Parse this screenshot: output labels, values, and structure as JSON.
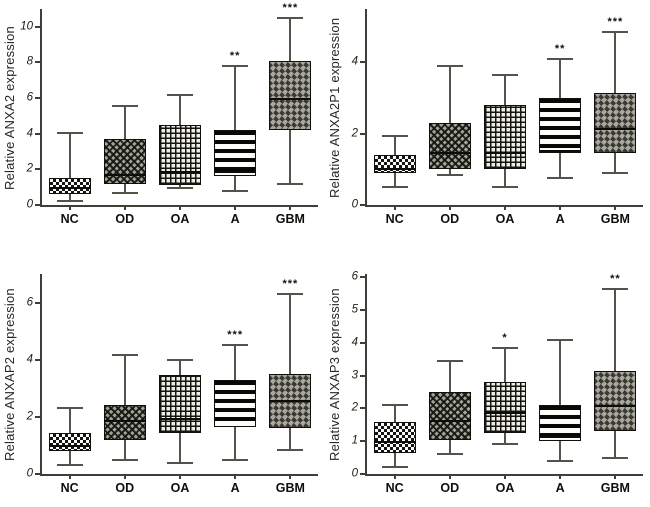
{
  "styles": {
    "background": "#ffffff",
    "axis_color": "#3f3f38",
    "whisker_color": "#53534b",
    "box_border_color": "#12100c",
    "text_color": "#1d1d18"
  },
  "chart_data": [
    {
      "type": "box",
      "title": "",
      "xlabel": "",
      "ylabel": "Relative ANXA2 expression",
      "categories": [
        "NC",
        "OD",
        "OA",
        "A",
        "GBM"
      ],
      "yticks": [
        0,
        2,
        4,
        6,
        8,
        10
      ],
      "ylim": [
        0,
        11
      ],
      "grid": false,
      "boxes": [
        {
          "category": "NC",
          "pattern": "checker",
          "whisker_low": 0.2,
          "q1": 0.6,
          "median": 1.0,
          "q3": 1.5,
          "whisker_high": 4.05,
          "significance": ""
        },
        {
          "category": "OD",
          "pattern": "diagonal",
          "whisker_low": 0.7,
          "q1": 1.2,
          "median": 1.75,
          "q3": 3.7,
          "whisker_high": 5.55,
          "significance": ""
        },
        {
          "category": "OA",
          "pattern": "grid",
          "whisker_low": 0.95,
          "q1": 1.15,
          "median": 1.9,
          "q3": 4.5,
          "whisker_high": 6.2,
          "significance": ""
        },
        {
          "category": "A",
          "pattern": "hstripe",
          "whisker_low": 0.8,
          "q1": 1.65,
          "median": 1.9,
          "q3": 4.2,
          "whisker_high": 7.8,
          "significance": "**"
        },
        {
          "category": "GBM",
          "pattern": "weave",
          "whisker_low": 1.2,
          "q1": 4.2,
          "median": 6.0,
          "q3": 8.1,
          "whisker_high": 10.5,
          "significance": "***"
        }
      ]
    },
    {
      "type": "box",
      "title": "",
      "xlabel": "",
      "ylabel": "Relative ANXA2P1 expression",
      "categories": [
        "NC",
        "OD",
        "OA",
        "A",
        "GBM"
      ],
      "yticks": [
        0,
        2,
        4
      ],
      "ylim": [
        0,
        5.5
      ],
      "grid": false,
      "boxes": [
        {
          "category": "NC",
          "pattern": "checker",
          "whisker_low": 0.5,
          "q1": 0.9,
          "median": 1.05,
          "q3": 1.4,
          "whisker_high": 1.95,
          "significance": ""
        },
        {
          "category": "OD",
          "pattern": "diagonal",
          "whisker_low": 0.85,
          "q1": 1.0,
          "median": 1.5,
          "q3": 2.3,
          "whisker_high": 3.9,
          "significance": ""
        },
        {
          "category": "OA",
          "pattern": "grid",
          "whisker_low": 0.5,
          "q1": 1.0,
          "median": 1.5,
          "q3": 2.8,
          "whisker_high": 3.65,
          "significance": ""
        },
        {
          "category": "A",
          "pattern": "hstripe",
          "whisker_low": 0.75,
          "q1": 1.45,
          "median": 1.55,
          "q3": 3.0,
          "whisker_high": 4.1,
          "significance": "**"
        },
        {
          "category": "GBM",
          "pattern": "weave",
          "whisker_low": 0.9,
          "q1": 1.45,
          "median": 2.15,
          "q3": 3.15,
          "whisker_high": 4.85,
          "significance": "***"
        }
      ]
    },
    {
      "type": "box",
      "title": "",
      "xlabel": "",
      "ylabel": "Relative ANXAP2 expression",
      "categories": [
        "NC",
        "OD",
        "OA",
        "A",
        "GBM"
      ],
      "yticks": [
        0,
        2,
        4,
        6
      ],
      "ylim": [
        0,
        7
      ],
      "grid": false,
      "boxes": [
        {
          "category": "NC",
          "pattern": "checker",
          "whisker_low": 0.3,
          "q1": 0.8,
          "median": 1.0,
          "q3": 1.45,
          "whisker_high": 2.3,
          "significance": ""
        },
        {
          "category": "OD",
          "pattern": "diagonal",
          "whisker_low": 0.5,
          "q1": 1.2,
          "median": 1.9,
          "q3": 2.4,
          "whisker_high": 4.15,
          "significance": ""
        },
        {
          "category": "OA",
          "pattern": "grid",
          "whisker_low": 0.4,
          "q1": 1.45,
          "median": 1.95,
          "q3": 3.45,
          "whisker_high": 4.0,
          "significance": ""
        },
        {
          "category": "A",
          "pattern": "hstripe",
          "whisker_low": 0.5,
          "q1": 1.65,
          "median": 2.3,
          "q3": 3.3,
          "whisker_high": 4.5,
          "significance": "***"
        },
        {
          "category": "GBM",
          "pattern": "weave",
          "whisker_low": 0.85,
          "q1": 1.6,
          "median": 2.6,
          "q3": 3.5,
          "whisker_high": 6.3,
          "significance": "***"
        }
      ]
    },
    {
      "type": "box",
      "title": "",
      "xlabel": "",
      "ylabel": "Relative ANXAP3 expression",
      "categories": [
        "NC",
        "OD",
        "OA",
        "A",
        "GBM"
      ],
      "yticks": [
        0,
        1,
        2,
        3,
        4,
        5,
        6
      ],
      "ylim": [
        0,
        6.1
      ],
      "grid": false,
      "boxes": [
        {
          "category": "NC",
          "pattern": "checker",
          "whisker_low": 0.2,
          "q1": 0.65,
          "median": 1.0,
          "q3": 1.6,
          "whisker_high": 2.1,
          "significance": ""
        },
        {
          "category": "OD",
          "pattern": "diagonal",
          "whisker_low": 0.6,
          "q1": 1.05,
          "median": 1.65,
          "q3": 2.5,
          "whisker_high": 3.45,
          "significance": ""
        },
        {
          "category": "OA",
          "pattern": "grid",
          "whisker_low": 0.9,
          "q1": 1.25,
          "median": 1.9,
          "q3": 2.8,
          "whisker_high": 3.85,
          "significance": "*"
        },
        {
          "category": "A",
          "pattern": "hstripe",
          "whisker_low": 0.4,
          "q1": 1.0,
          "median": 1.15,
          "q3": 2.1,
          "whisker_high": 4.1,
          "significance": ""
        },
        {
          "category": "GBM",
          "pattern": "weave",
          "whisker_low": 0.5,
          "q1": 1.3,
          "median": 2.1,
          "q3": 3.15,
          "whisker_high": 5.65,
          "significance": "**"
        }
      ]
    }
  ]
}
